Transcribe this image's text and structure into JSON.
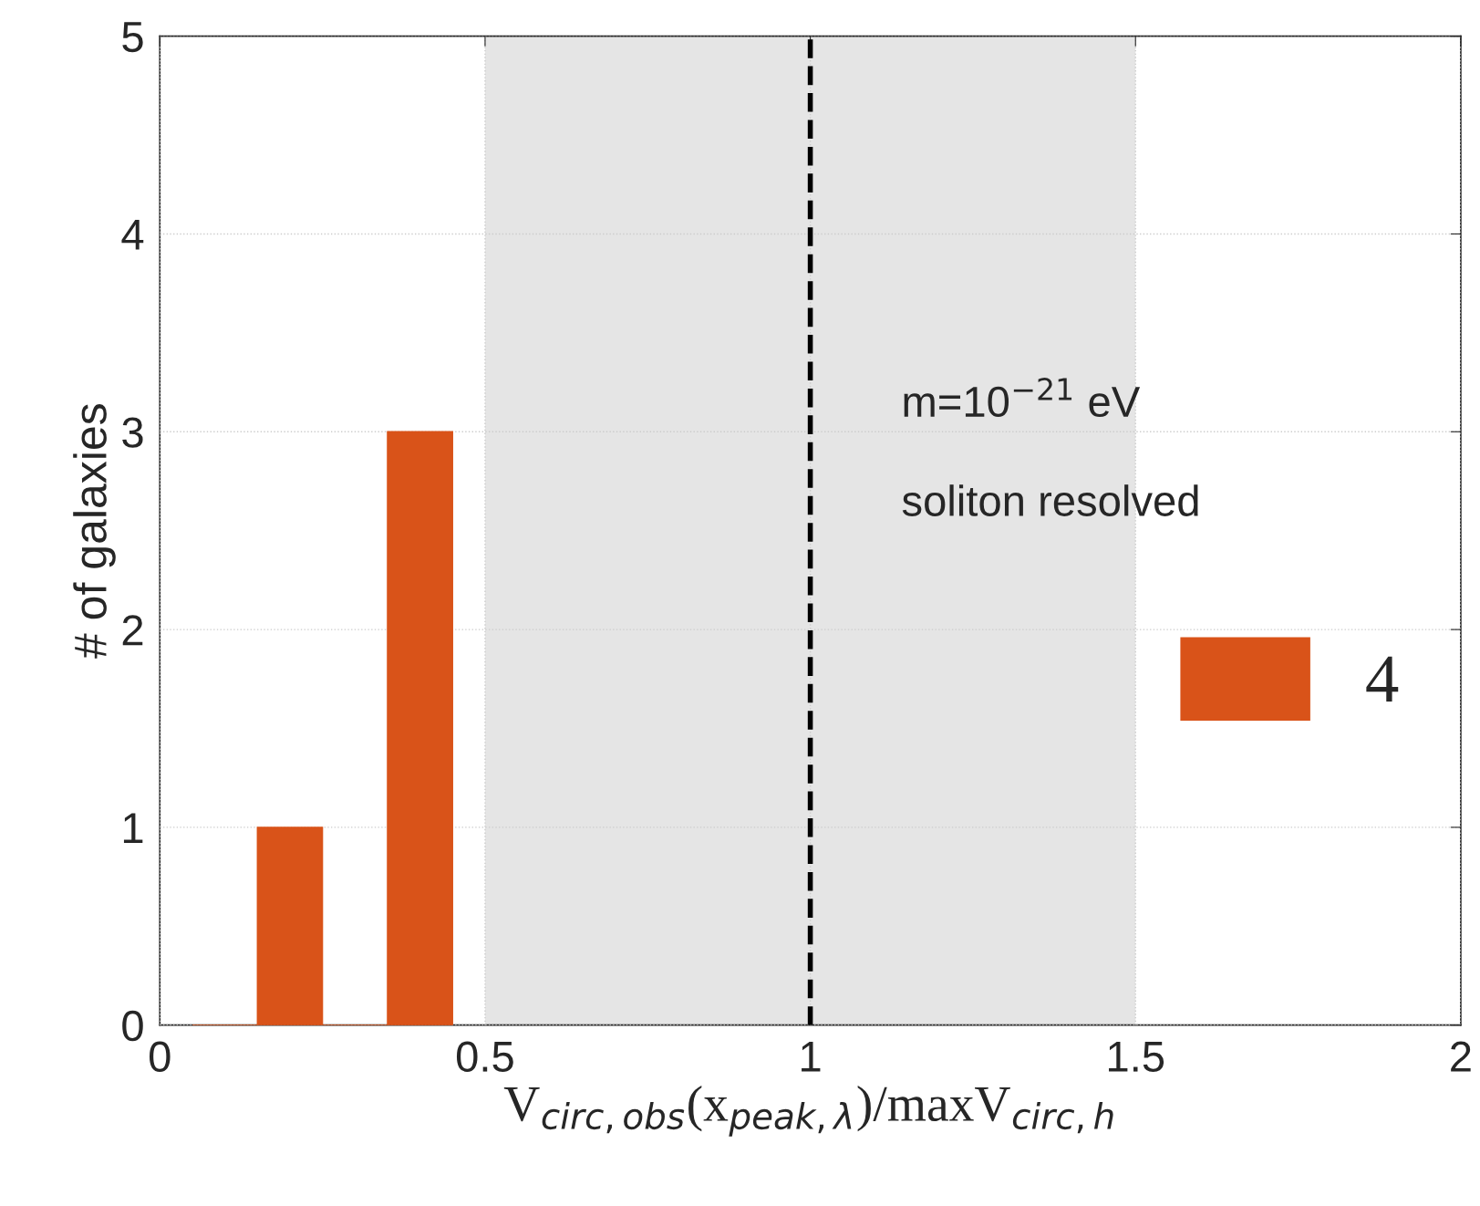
{
  "chart_data": {
    "type": "histogram",
    "xlabel": "V$_{circ,obs}$(x$_{peak,λ}$)/maxV$_{circ,h}$",
    "ylabel": "# of galaxies",
    "bins": [
      0.05,
      0.15,
      0.25,
      0.35,
      0.45
    ],
    "series": [
      {
        "name": "4",
        "color": "#d95319",
        "values": [
          0,
          1,
          0,
          3
        ]
      }
    ],
    "xlim": [
      0,
      2
    ],
    "xticks": [
      0,
      0.5,
      1,
      1.5,
      2
    ],
    "ylim": [
      0,
      5
    ],
    "yticks": [
      0,
      1,
      2,
      3,
      4,
      5
    ],
    "ref_lines": [
      {
        "axis": "x",
        "value": 1,
        "color": "#000000",
        "line_style": "dashed"
      }
    ],
    "bands": [
      {
        "axis": "x",
        "from": 0.5,
        "to": 1.5,
        "color": "#e5e5e5"
      }
    ],
    "annotations": [
      "m=10$^{−21}$ eV",
      "soliton resolved"
    ],
    "grid": true,
    "legend": "right"
  }
}
